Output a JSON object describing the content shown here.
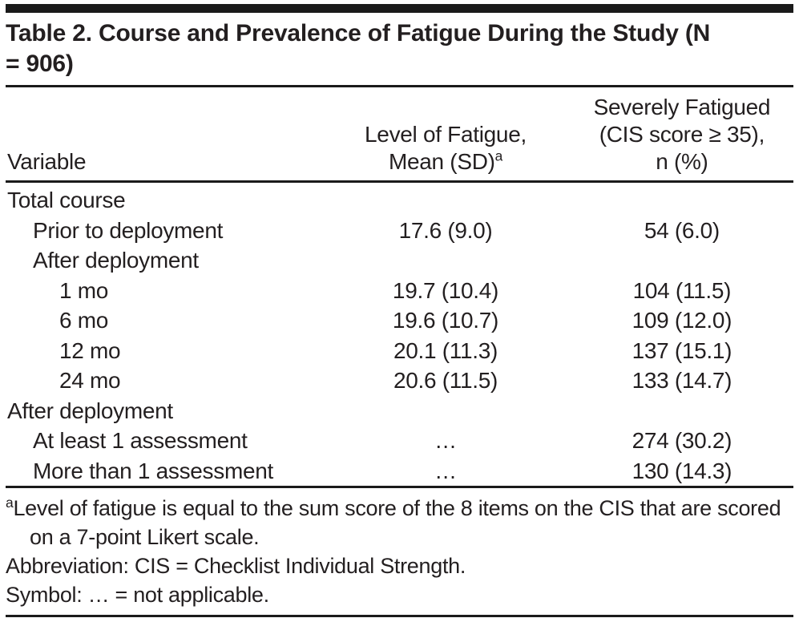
{
  "page": {
    "background": "#ffffff",
    "text_color": "#231f20",
    "rule_color": "#1a1a1a"
  },
  "table": {
    "title": "Table 2. Course and Prevalence of Fatigue During the Study (N = 906)",
    "columns": {
      "variable": "Variable",
      "fatigue_line1": "Level of Fatigue,",
      "fatigue_line2": "Mean (SD)",
      "fatigue_sup": "a",
      "severe_line1": "Severely Fatigued",
      "severe_line2": "(CIS score ≥ 35),",
      "severe_line3": "n (%)"
    },
    "rows": [
      {
        "label": "Total course",
        "indent": 0,
        "mean": "",
        "severe": ""
      },
      {
        "label": "Prior to deployment",
        "indent": 1,
        "mean": "17.6 (9.0)",
        "severe": "54 (6.0)"
      },
      {
        "label": "After deployment",
        "indent": 1,
        "mean": "",
        "severe": ""
      },
      {
        "label": "1 mo",
        "indent": 2,
        "mean": "19.7 (10.4)",
        "severe": "104 (11.5)"
      },
      {
        "label": "6 mo",
        "indent": 2,
        "mean": "19.6 (10.7)",
        "severe": "109 (12.0)"
      },
      {
        "label": "12 mo",
        "indent": 2,
        "mean": "20.1 (11.3)",
        "severe": "137 (15.1)"
      },
      {
        "label": "24 mo",
        "indent": 2,
        "mean": "20.6 (11.5)",
        "severe": "133 (14.7)"
      },
      {
        "label": "After deployment",
        "indent": 0,
        "mean": "",
        "severe": ""
      },
      {
        "label": "At least 1 assessment",
        "indent": 1,
        "mean": "…",
        "severe": "274 (30.2)"
      },
      {
        "label": "More than 1 assessment",
        "indent": 1,
        "mean": "…",
        "severe": "130 (14.3)"
      }
    ]
  },
  "footnotes": {
    "a_sup": "a",
    "a_text": "Level of fatigue is equal to the sum score of the 8 items on the CIS that are scored on a 7-point Likert scale.",
    "abbreviation": "Abbreviation: CIS = Checklist Individual Strength.",
    "symbol": "Symbol: … = not applicable."
  }
}
